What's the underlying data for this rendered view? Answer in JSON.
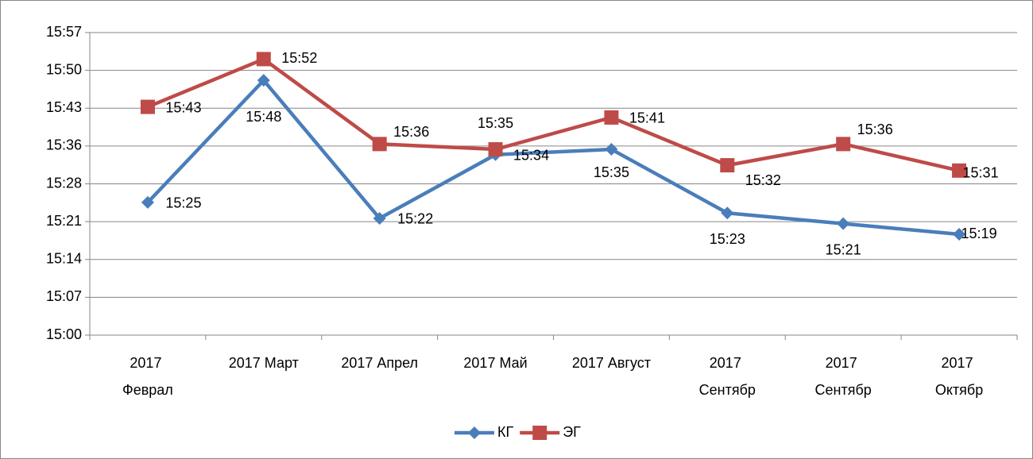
{
  "chart_data": {
    "type": "line",
    "categories": [
      "2017 Феврал",
      "2017 Март",
      "2017 Апрел",
      "2017 Май",
      "2017 Август",
      "2017 Сентябр",
      "2017 Сентябр",
      "2017 Октябр"
    ],
    "series": [
      {
        "name": "КГ",
        "color": "#4a7ebb",
        "marker": "diamond",
        "values": [
          925,
          948,
          922,
          934,
          935,
          923,
          921,
          919
        ],
        "value_labels": [
          "15:25",
          "15:48",
          "15:22",
          "15:34",
          "15:35",
          "15:23",
          "15:21",
          "15:19"
        ]
      },
      {
        "name": "ЭГ",
        "color": "#be4b48",
        "marker": "square",
        "values": [
          943,
          952,
          936,
          935,
          941,
          932,
          936,
          931
        ],
        "value_labels": [
          "15:43",
          "15:52",
          "15:36",
          "15:35",
          "15:41",
          "15:32",
          "15:36",
          "15:31"
        ]
      }
    ],
    "ylim": [
      900,
      957
    ],
    "yticks": [
      {
        "value": 900,
        "label": "15:00"
      },
      {
        "value": 907.125,
        "label": "15:07"
      },
      {
        "value": 914.25,
        "label": "15:14"
      },
      {
        "value": 921.375,
        "label": "15:21"
      },
      {
        "value": 928.5,
        "label": "15:28"
      },
      {
        "value": 935.625,
        "label": "15:36"
      },
      {
        "value": 942.75,
        "label": "15:43"
      },
      {
        "value": 949.875,
        "label": "15:50"
      },
      {
        "value": 957,
        "label": "15:57"
      }
    ],
    "grid": true,
    "legend": "bottom"
  }
}
